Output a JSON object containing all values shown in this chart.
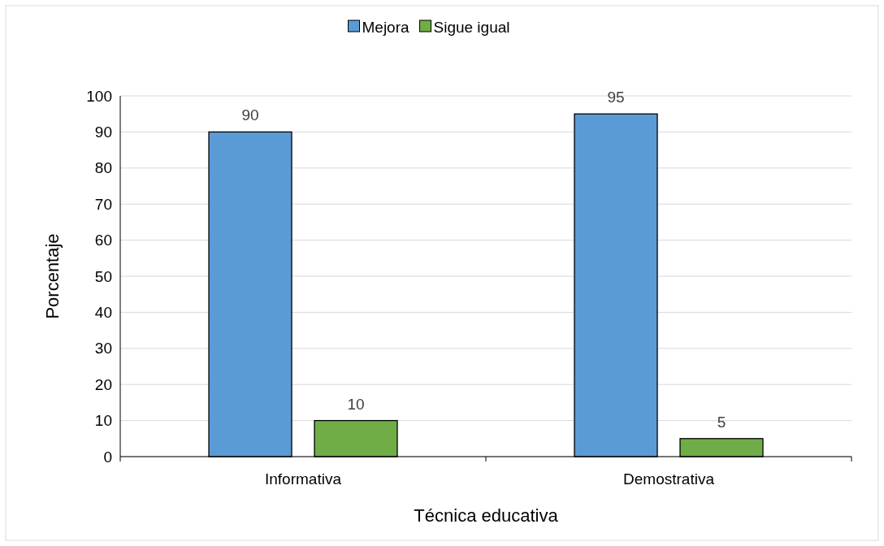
{
  "chart_data": {
    "type": "bar",
    "xlabel": "Técnica educativa",
    "ylabel": "Porcentaje",
    "categories": [
      "Informativa",
      "Demostrativa"
    ],
    "series": [
      {
        "name": "Mejora",
        "color": "#5b9bd5",
        "values": [
          90,
          95
        ]
      },
      {
        "name": "Sigue igual",
        "color": "#70ad47",
        "values": [
          10,
          5
        ]
      }
    ],
    "ylim": [
      0,
      100
    ],
    "yticks": [
      0,
      10,
      20,
      30,
      40,
      50,
      60,
      70,
      80,
      90,
      100
    ],
    "grid": "y",
    "legend": "top",
    "data_labels": true
  }
}
